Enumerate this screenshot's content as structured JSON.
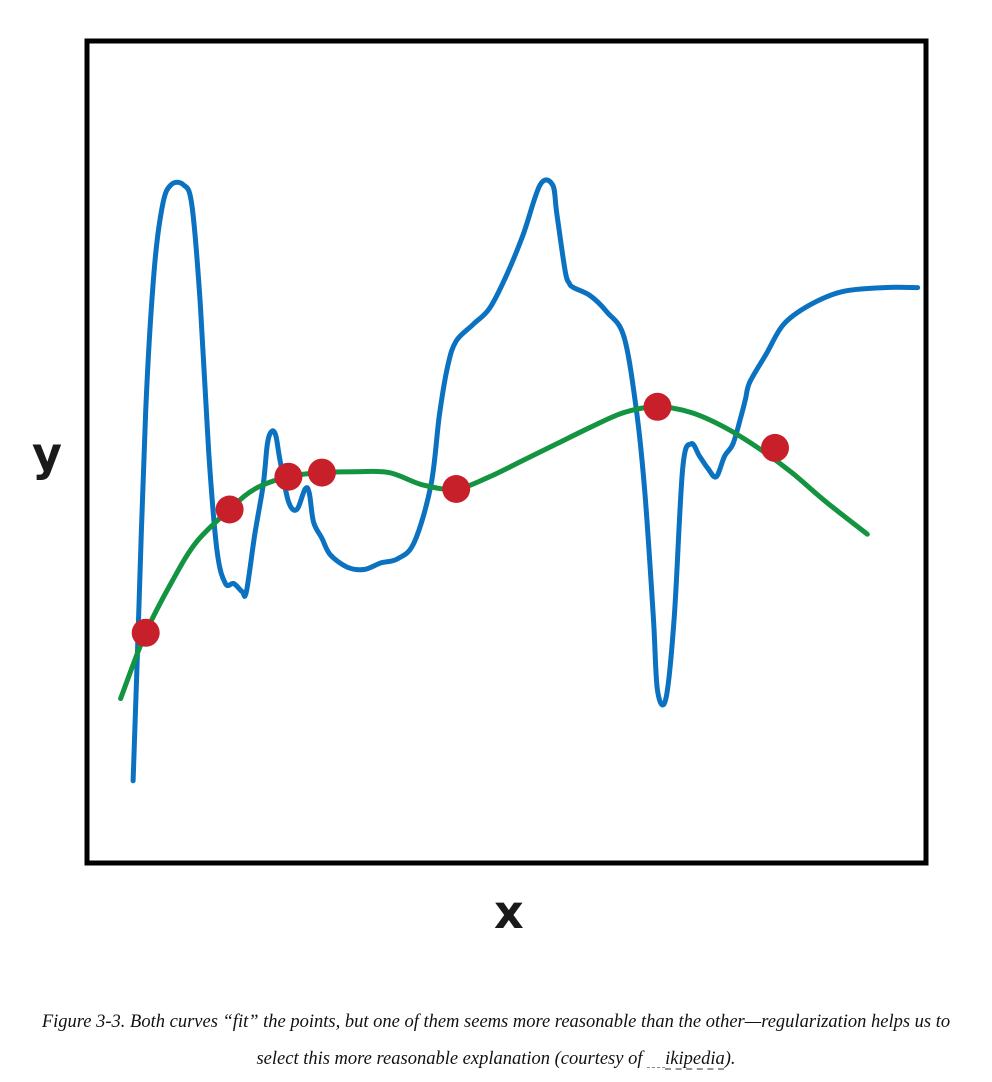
{
  "chart_data": {
    "type": "line",
    "xlabel": "x",
    "ylabel": "y",
    "grid": false,
    "legend": "none",
    "colors": {
      "overfit": "#0a72c0",
      "regularized": "#129440",
      "points": "#c8202b",
      "frame": "#000000"
    },
    "points": [
      {
        "x": 0.07,
        "y": 0.28
      },
      {
        "x": 0.17,
        "y": 0.43
      },
      {
        "x": 0.24,
        "y": 0.47
      },
      {
        "x": 0.28,
        "y": 0.475
      },
      {
        "x": 0.44,
        "y": 0.455
      },
      {
        "x": 0.68,
        "y": 0.555
      },
      {
        "x": 0.82,
        "y": 0.505
      }
    ],
    "series": [
      {
        "color": "#0a72c0",
        "x": [
          0.055,
          0.06,
          0.07,
          0.08,
          0.09,
          0.1,
          0.115,
          0.125,
          0.135,
          0.145,
          0.155,
          0.165,
          0.175,
          0.185,
          0.19,
          0.2,
          0.21,
          0.215,
          0.22,
          0.225,
          0.23,
          0.24,
          0.25,
          0.26,
          0.265,
          0.27,
          0.28,
          0.29,
          0.31,
          0.33,
          0.35,
          0.37,
          0.39,
          0.41,
          0.42,
          0.43,
          0.44,
          0.46,
          0.48,
          0.5,
          0.52,
          0.54,
          0.555,
          0.56,
          0.57,
          0.575,
          0.58,
          0.6,
          0.62,
          0.64,
          0.655,
          0.665,
          0.675,
          0.68,
          0.69,
          0.7,
          0.71,
          0.72,
          0.73,
          0.74,
          0.75,
          0.76,
          0.77,
          0.78,
          0.785,
          0.79,
          0.81,
          0.83,
          0.86,
          0.9,
          0.95,
          0.99
        ],
        "y": [
          0.1,
          0.25,
          0.55,
          0.72,
          0.8,
          0.825,
          0.825,
          0.8,
          0.68,
          0.5,
          0.38,
          0.34,
          0.34,
          0.33,
          0.33,
          0.4,
          0.46,
          0.51,
          0.525,
          0.52,
          0.49,
          0.44,
          0.43,
          0.455,
          0.45,
          0.415,
          0.395,
          0.375,
          0.36,
          0.357,
          0.365,
          0.37,
          0.39,
          0.46,
          0.545,
          0.605,
          0.635,
          0.655,
          0.675,
          0.715,
          0.765,
          0.825,
          0.825,
          0.79,
          0.72,
          0.705,
          0.7,
          0.69,
          0.67,
          0.64,
          0.55,
          0.45,
          0.3,
          0.21,
          0.2,
          0.3,
          0.48,
          0.51,
          0.495,
          0.48,
          0.47,
          0.495,
          0.51,
          0.545,
          0.565,
          0.585,
          0.62,
          0.655,
          0.678,
          0.695,
          0.7,
          0.7
        ]
      },
      {
        "color": "#129440",
        "x": [
          0.04,
          0.07,
          0.1,
          0.13,
          0.17,
          0.2,
          0.24,
          0.28,
          0.32,
          0.36,
          0.4,
          0.44,
          0.48,
          0.52,
          0.56,
          0.6,
          0.64,
          0.68,
          0.72,
          0.76,
          0.8,
          0.84,
          0.88,
          0.93
        ],
        "y": [
          0.2,
          0.28,
          0.34,
          0.39,
          0.43,
          0.455,
          0.47,
          0.475,
          0.476,
          0.475,
          0.46,
          0.455,
          0.47,
          0.49,
          0.51,
          0.53,
          0.548,
          0.555,
          0.548,
          0.53,
          0.505,
          0.475,
          0.44,
          0.4
        ]
      }
    ],
    "xlim": [
      0,
      1
    ],
    "ylim": [
      0,
      1
    ]
  },
  "caption": {
    "text_before_link": "Figure 3-3. Both curves “fit” the points, but one of them seems more reasonable than the other—regularization helps us to select this more reasonable explanation (courtesy of ",
    "link_text": "ikipedia",
    "text_after_link": ")."
  }
}
